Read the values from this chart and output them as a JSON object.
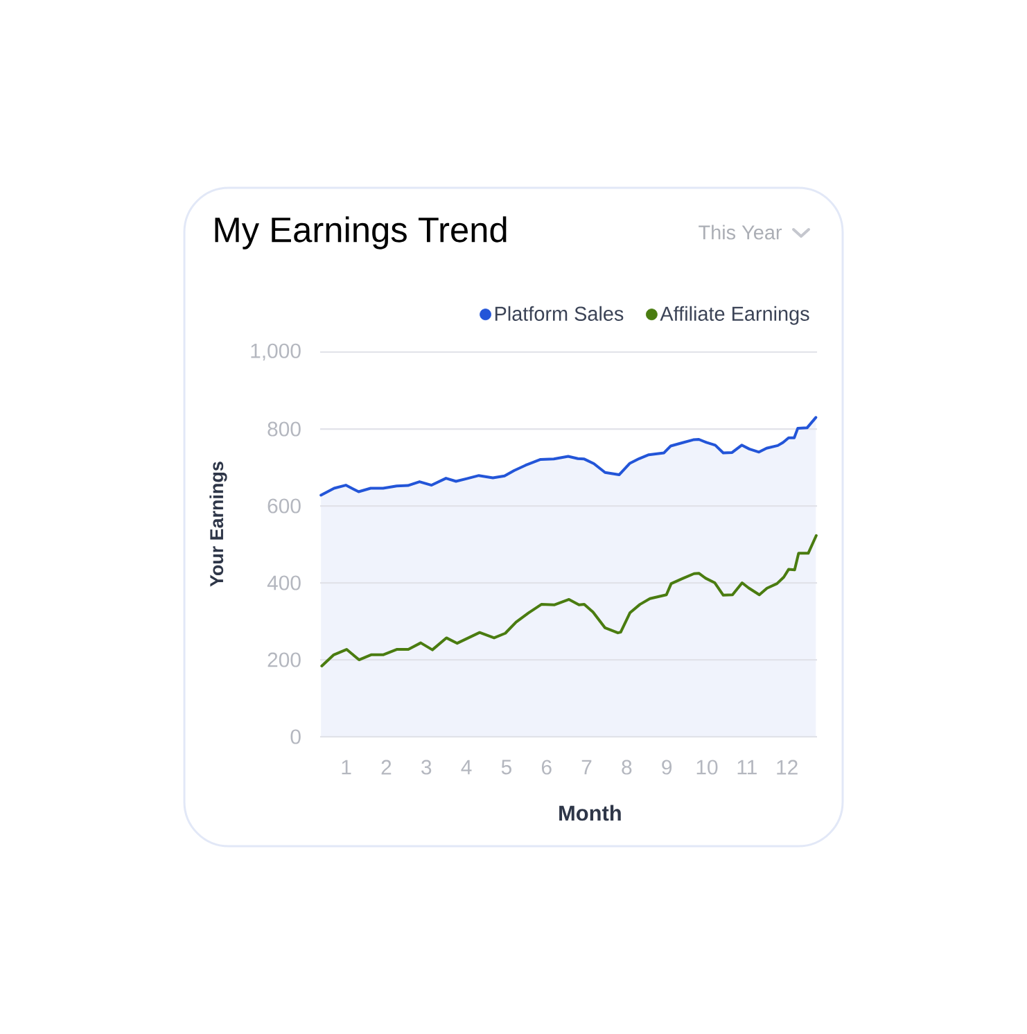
{
  "chart_data": {
    "type": "line",
    "title": "My Earnings Trend",
    "xlabel": "Month",
    "ylabel": "Your Earnings",
    "annotations": [
      "This Year"
    ],
    "xlim": [
      0.35,
      12.75
    ],
    "xticks": [
      1,
      2,
      3,
      4,
      5,
      6,
      7,
      8,
      9,
      10,
      11,
      12
    ],
    "ylim": [
      0,
      1000
    ],
    "yticks": [
      0,
      200,
      400,
      600,
      800,
      {
        "value": 1000,
        "label": "1,000"
      }
    ],
    "grid": "y",
    "legend": "top right",
    "series": [
      {
        "name": "Platform Sales",
        "type": "area",
        "color": "#2355d8",
        "x": [
          0.37,
          0.7,
          0.99,
          1.31,
          1.61,
          1.92,
          2.26,
          2.54,
          2.83,
          3.13,
          3.49,
          3.74,
          4.01,
          4.31,
          4.66,
          4.95,
          5.19,
          5.48,
          5.85,
          6.18,
          6.54,
          6.78,
          6.94,
          7.18,
          7.46,
          7.81,
          8.08,
          8.31,
          8.55,
          8.93,
          9.1,
          9.38,
          9.66,
          9.8,
          9.99,
          10.21,
          10.41,
          10.63,
          10.87,
          11.06,
          11.3,
          11.49,
          11.77,
          11.9,
          12.04,
          12.18,
          12.27,
          12.5,
          12.72
        ],
        "values": [
          628,
          646,
          654,
          637,
          646,
          646,
          652,
          653,
          663,
          654,
          672,
          664,
          671,
          679,
          673,
          678,
          692,
          706,
          721,
          722,
          729,
          723,
          722,
          710,
          687,
          681,
          711,
          723,
          733,
          738,
          756,
          764,
          772,
          773,
          765,
          758,
          738,
          739,
          758,
          748,
          740,
          750,
          757,
          765,
          777,
          777,
          802,
          803,
          830
        ]
      },
      {
        "name": "Affiliate Earnings",
        "color": "#4a7c10",
        "x": [
          0.39,
          0.69,
          1.01,
          1.32,
          1.62,
          1.92,
          2.26,
          2.55,
          2.86,
          3.15,
          3.5,
          3.77,
          4.33,
          4.69,
          4.97,
          5.24,
          5.55,
          5.87,
          6.2,
          6.56,
          6.81,
          6.94,
          7.16,
          7.46,
          7.78,
          7.85,
          8.08,
          8.33,
          8.58,
          8.99,
          9.11,
          9.39,
          9.68,
          9.8,
          9.97,
          10.2,
          10.41,
          10.64,
          10.88,
          11.04,
          11.31,
          11.5,
          11.75,
          11.92,
          12.04,
          12.19,
          12.29,
          12.53,
          12.73
        ],
        "values": [
          184,
          213,
          227,
          200,
          213,
          213,
          227,
          227,
          244,
          226,
          257,
          243,
          271,
          257,
          269,
          298,
          322,
          344,
          343,
          357,
          343,
          344,
          324,
          283,
          270,
          272,
          322,
          344,
          359,
          369,
          398,
          411,
          424,
          425,
          412,
          400,
          368,
          369,
          400,
          387,
          369,
          386,
          398,
          415,
          435,
          434,
          477,
          477,
          523
        ]
      }
    ]
  }
}
